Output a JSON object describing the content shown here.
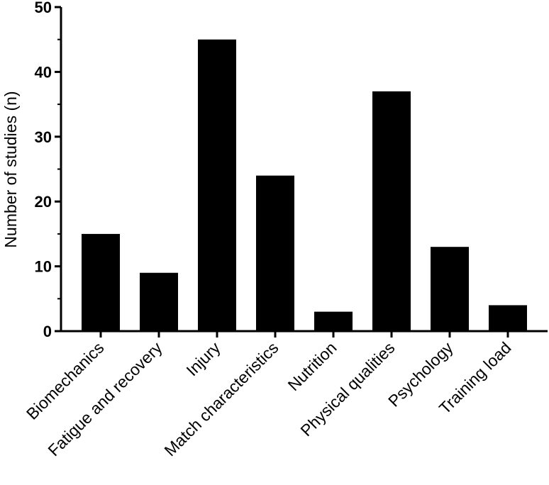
{
  "chart_data": {
    "type": "bar",
    "title": "",
    "xlabel": "",
    "ylabel": "Number of studies (n)",
    "ylim": [
      0,
      50
    ],
    "y_ticks": [
      0,
      10,
      20,
      30,
      40,
      50
    ],
    "grid": false,
    "legend": "none",
    "bar_color": "#000000",
    "categories": [
      "Biomechanics",
      "Fatigue and recovery",
      "Injury",
      "Match characteristics",
      "Nutrition",
      "Physical qualities",
      "Psychology",
      "Training load"
    ],
    "values": [
      15,
      9,
      45,
      24,
      3,
      37,
      13,
      4
    ]
  }
}
